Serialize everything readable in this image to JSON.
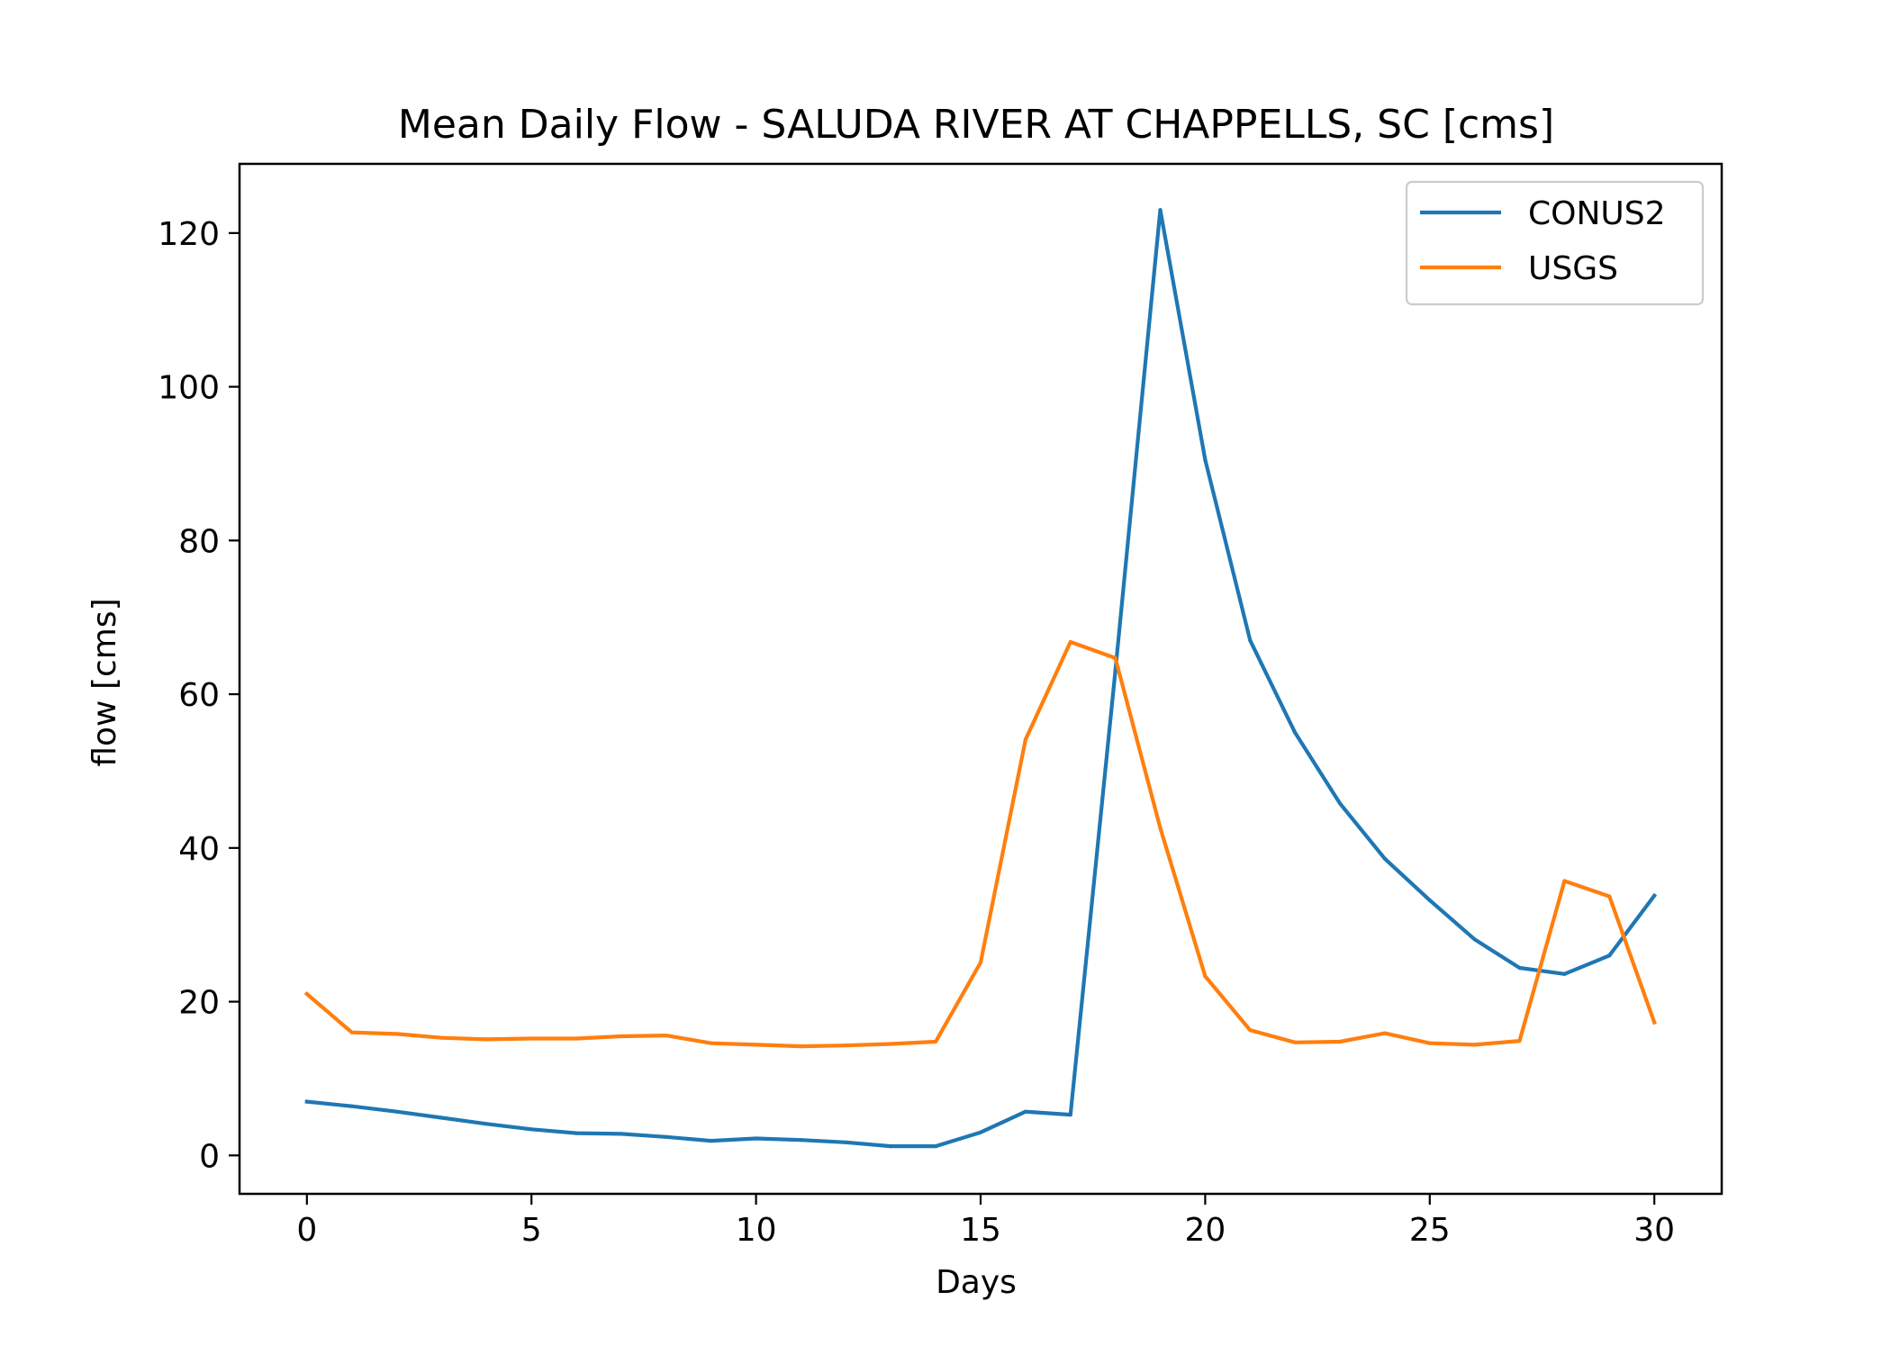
{
  "chart_data": {
    "type": "line",
    "title": "Mean Daily Flow - SALUDA RIVER AT CHAPPELLS, SC [cms]",
    "xlabel": "Days",
    "ylabel": "flow [cms]",
    "xlim": [
      -1.5,
      31.5
    ],
    "ylim": [
      -5,
      129
    ],
    "xticks": [
      0,
      5,
      10,
      15,
      20,
      25,
      30
    ],
    "yticks": [
      0,
      20,
      40,
      60,
      80,
      100,
      120
    ],
    "grid": false,
    "legend_position": "top-right",
    "x": [
      0,
      1,
      2,
      3,
      4,
      5,
      6,
      7,
      8,
      9,
      10,
      11,
      12,
      13,
      14,
      15,
      16,
      17,
      18,
      19,
      20,
      21,
      22,
      23,
      24,
      25,
      26,
      27,
      28,
      29,
      30
    ],
    "series": [
      {
        "name": "CONUS2",
        "color": "#1f77b4",
        "values": [
          7.0,
          6.4,
          5.7,
          4.9,
          4.1,
          3.4,
          2.9,
          2.8,
          2.4,
          1.9,
          2.2,
          2.0,
          1.7,
          1.2,
          1.2,
          3.0,
          5.7,
          5.3,
          63,
          123,
          90.5,
          67,
          55,
          45.8,
          38.6,
          33.2,
          28.1,
          24.4,
          23.6,
          26.0,
          33.8
        ]
      },
      {
        "name": "USGS",
        "color": "#ff7f0e",
        "values": [
          21.0,
          16.0,
          15.8,
          15.3,
          15.1,
          15.2,
          15.2,
          15.5,
          15.6,
          14.6,
          14.4,
          14.2,
          14.3,
          14.5,
          14.8,
          25.1,
          54.1,
          66.8,
          64.7,
          42.6,
          23.3,
          16.3,
          14.7,
          14.8,
          15.9,
          14.6,
          14.4,
          14.9,
          35.7,
          33.7,
          17.3
        ]
      }
    ]
  }
}
